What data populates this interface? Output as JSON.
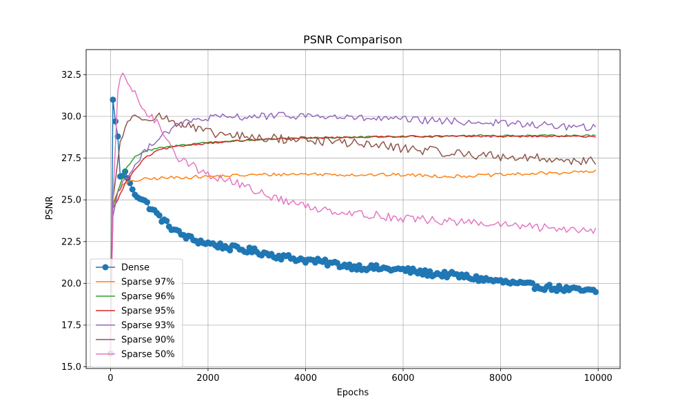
{
  "chart_data": {
    "type": "line",
    "title": "PSNR Comparison",
    "xlabel": "Epochs",
    "ylabel": "PSNR",
    "xlim": [
      -500,
      10450
    ],
    "ylim": [
      14.9,
      34.0
    ],
    "xticks": [
      0,
      2000,
      4000,
      6000,
      8000,
      10000
    ],
    "xtick_labels": [
      "0",
      "2000",
      "4000",
      "6000",
      "8000",
      "10000"
    ],
    "yticks": [
      15.0,
      17.5,
      20.0,
      22.5,
      25.0,
      27.5,
      30.0,
      32.5
    ],
    "ytick_labels": [
      "15.0",
      "17.5",
      "20.0",
      "22.5",
      "25.0",
      "27.5",
      "30.0",
      "32.5"
    ],
    "grid": true,
    "legend_position": "lower-left",
    "x_step": 50,
    "x_end": 9950,
    "series": [
      {
        "name": "Dense",
        "color": "#1f77b4",
        "marker": "circle",
        "anchors": [
          [
            0,
            15.8
          ],
          [
            50,
            31.0
          ],
          [
            100,
            29.7
          ],
          [
            150,
            28.8
          ],
          [
            200,
            26.4
          ],
          [
            300,
            26.7
          ],
          [
            400,
            26.0
          ],
          [
            500,
            25.4
          ],
          [
            700,
            24.9
          ],
          [
            900,
            24.3
          ],
          [
            1100,
            23.7
          ],
          [
            1400,
            23.0
          ],
          [
            1700,
            22.6
          ],
          [
            2000,
            22.4
          ],
          [
            2500,
            22.1
          ],
          [
            3000,
            21.9
          ],
          [
            3500,
            21.6
          ],
          [
            4000,
            21.4
          ],
          [
            4500,
            21.2
          ],
          [
            5000,
            21.0
          ],
          [
            5500,
            20.9
          ],
          [
            6000,
            20.8
          ],
          [
            6500,
            20.6
          ],
          [
            7000,
            20.5
          ],
          [
            7500,
            20.3
          ],
          [
            8000,
            20.1
          ],
          [
            8500,
            19.9
          ],
          [
            9000,
            19.75
          ],
          [
            9500,
            19.6
          ],
          [
            9950,
            19.5
          ]
        ]
      },
      {
        "name": "Sparse 97%",
        "color": "#ff7f0e",
        "marker": "none",
        "anchors": [
          [
            0,
            15.5
          ],
          [
            50,
            24.8
          ],
          [
            150,
            25.5
          ],
          [
            300,
            26.0
          ],
          [
            600,
            26.2
          ],
          [
            1000,
            26.3
          ],
          [
            2000,
            26.4
          ],
          [
            3000,
            26.5
          ],
          [
            4000,
            26.55
          ],
          [
            5000,
            26.5
          ],
          [
            6000,
            26.5
          ],
          [
            7000,
            26.4
          ],
          [
            8000,
            26.5
          ],
          [
            9000,
            26.6
          ],
          [
            9950,
            26.7
          ]
        ]
      },
      {
        "name": "Sparse 96%",
        "color": "#2ca02c",
        "marker": "none",
        "anchors": [
          [
            0,
            19.5
          ],
          [
            50,
            24.6
          ],
          [
            150,
            25.5
          ],
          [
            300,
            26.8
          ],
          [
            500,
            27.6
          ],
          [
            700,
            27.9
          ],
          [
            1000,
            28.1
          ],
          [
            1500,
            28.3
          ],
          [
            2000,
            28.45
          ],
          [
            3000,
            28.6
          ],
          [
            4000,
            28.7
          ],
          [
            5000,
            28.75
          ],
          [
            6000,
            28.8
          ],
          [
            7000,
            28.85
          ],
          [
            8000,
            28.85
          ],
          [
            9000,
            28.85
          ],
          [
            9950,
            28.85
          ]
        ]
      },
      {
        "name": "Sparse 95%",
        "color": "#d62728",
        "marker": "none",
        "anchors": [
          [
            0,
            16.0
          ],
          [
            50,
            24.5
          ],
          [
            150,
            25.0
          ],
          [
            300,
            26.0
          ],
          [
            500,
            26.8
          ],
          [
            700,
            27.5
          ],
          [
            1000,
            28.0
          ],
          [
            1500,
            28.25
          ],
          [
            2000,
            28.4
          ],
          [
            3000,
            28.6
          ],
          [
            4000,
            28.7
          ],
          [
            5000,
            28.75
          ],
          [
            6000,
            28.8
          ],
          [
            7000,
            28.8
          ],
          [
            8000,
            28.8
          ],
          [
            9000,
            28.8
          ],
          [
            9950,
            28.8
          ]
        ]
      },
      {
        "name": "Sparse 93%",
        "color": "#9467bd",
        "marker": "none",
        "anchors": [
          [
            0,
            17.0
          ],
          [
            50,
            24.0
          ],
          [
            150,
            25.5
          ],
          [
            300,
            26.3
          ],
          [
            500,
            27.0
          ],
          [
            800,
            28.3
          ],
          [
            1100,
            29.0
          ],
          [
            1500,
            29.6
          ],
          [
            2000,
            29.9
          ],
          [
            3000,
            30.0
          ],
          [
            4000,
            30.05
          ],
          [
            5000,
            29.9
          ],
          [
            6000,
            29.8
          ],
          [
            7000,
            29.7
          ],
          [
            8000,
            29.6
          ],
          [
            9000,
            29.45
          ],
          [
            9950,
            29.3
          ]
        ]
      },
      {
        "name": "Sparse 90%",
        "color": "#8c564b",
        "marker": "none",
        "anchors": [
          [
            0,
            20.0
          ],
          [
            50,
            25.0
          ],
          [
            200,
            28.5
          ],
          [
            350,
            29.7
          ],
          [
            600,
            30.0
          ],
          [
            1000,
            30.0
          ],
          [
            1500,
            29.5
          ],
          [
            2000,
            29.0
          ],
          [
            3000,
            28.7
          ],
          [
            4000,
            28.6
          ],
          [
            5000,
            28.4
          ],
          [
            6000,
            28.1
          ],
          [
            7000,
            27.8
          ],
          [
            8000,
            27.6
          ],
          [
            9000,
            27.45
          ],
          [
            9950,
            27.3
          ]
        ]
      },
      {
        "name": "Sparse 50%",
        "color": "#e377c2",
        "marker": "none",
        "anchors": [
          [
            0,
            15.9
          ],
          [
            50,
            25.0
          ],
          [
            150,
            31.5
          ],
          [
            250,
            32.6
          ],
          [
            400,
            31.8
          ],
          [
            600,
            30.8
          ],
          [
            800,
            30.0
          ],
          [
            1000,
            29.5
          ],
          [
            1400,
            27.5
          ],
          [
            2000,
            26.5
          ],
          [
            2500,
            26.1
          ],
          [
            3000,
            25.5
          ],
          [
            3500,
            25.0
          ],
          [
            4000,
            24.6
          ],
          [
            5000,
            24.2
          ],
          [
            6000,
            23.9
          ],
          [
            7000,
            23.7
          ],
          [
            8000,
            23.5
          ],
          [
            9000,
            23.3
          ],
          [
            9950,
            23.2
          ]
        ]
      }
    ]
  }
}
